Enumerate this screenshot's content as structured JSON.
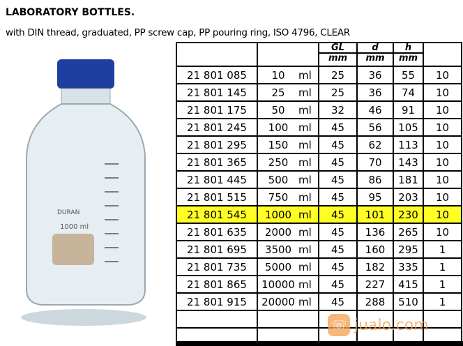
{
  "title": "LABORATORY BOTTLES.",
  "subtitle": "with DIN thread, graduated, PP screw cap, PP pouring ring, ISO 4796, CLEAR",
  "header": {
    "gl": "GL",
    "d": "d",
    "h": "h",
    "unit": "mm"
  },
  "rows": [
    {
      "code": "21 801 085",
      "vol": "10",
      "unit": "ml",
      "gl": "25",
      "d": "36",
      "h": "55",
      "qty": "10"
    },
    {
      "code": "21 801 145",
      "vol": "25",
      "unit": "ml",
      "gl": "25",
      "d": "36",
      "h": "74",
      "qty": "10"
    },
    {
      "code": "21 801 175",
      "vol": "50",
      "unit": "ml",
      "gl": "32",
      "d": "46",
      "h": "91",
      "qty": "10"
    },
    {
      "code": "21 801 245",
      "vol": "100",
      "unit": "ml",
      "gl": "45",
      "d": "56",
      "h": "105",
      "qty": "10"
    },
    {
      "code": "21 801 295",
      "vol": "150",
      "unit": "ml",
      "gl": "45",
      "d": "62",
      "h": "113",
      "qty": "10"
    },
    {
      "code": "21 801 365",
      "vol": "250",
      "unit": "ml",
      "gl": "45",
      "d": "70",
      "h": "143",
      "qty": "10"
    },
    {
      "code": "21 801 445",
      "vol": "500",
      "unit": "ml",
      "gl": "45",
      "d": "86",
      "h": "181",
      "qty": "10"
    },
    {
      "code": "21 801 515",
      "vol": "750",
      "unit": "ml",
      "gl": "45",
      "d": "95",
      "h": "203",
      "qty": "10"
    },
    {
      "code": "21 801 545",
      "vol": "1000",
      "unit": "ml",
      "gl": "45",
      "d": "101",
      "h": "230",
      "qty": "10"
    },
    {
      "code": "21 801 635",
      "vol": "2000",
      "unit": "ml",
      "gl": "45",
      "d": "136",
      "h": "265",
      "qty": "10"
    },
    {
      "code": "21 801 695",
      "vol": "3500",
      "unit": "ml",
      "gl": "45",
      "d": "160",
      "h": "295",
      "qty": "1"
    },
    {
      "code": "21 801 735",
      "vol": "5000",
      "unit": "ml",
      "gl": "45",
      "d": "182",
      "h": "335",
      "qty": "1"
    },
    {
      "code": "21 801 865",
      "vol": "10000",
      "unit": "ml",
      "gl": "45",
      "d": "227",
      "h": "415",
      "qty": "1"
    },
    {
      "code": "21 801 915",
      "vol": "20000",
      "unit": "ml",
      "gl": "45",
      "d": "288",
      "h": "510",
      "qty": "1"
    }
  ],
  "highlight_row": 8,
  "highlight_color": "#ffff26",
  "bottle": {
    "label": "1000 ml",
    "brand": "DURAN",
    "cap_color": "#1f3fa0"
  },
  "watermark": "jualo.com"
}
